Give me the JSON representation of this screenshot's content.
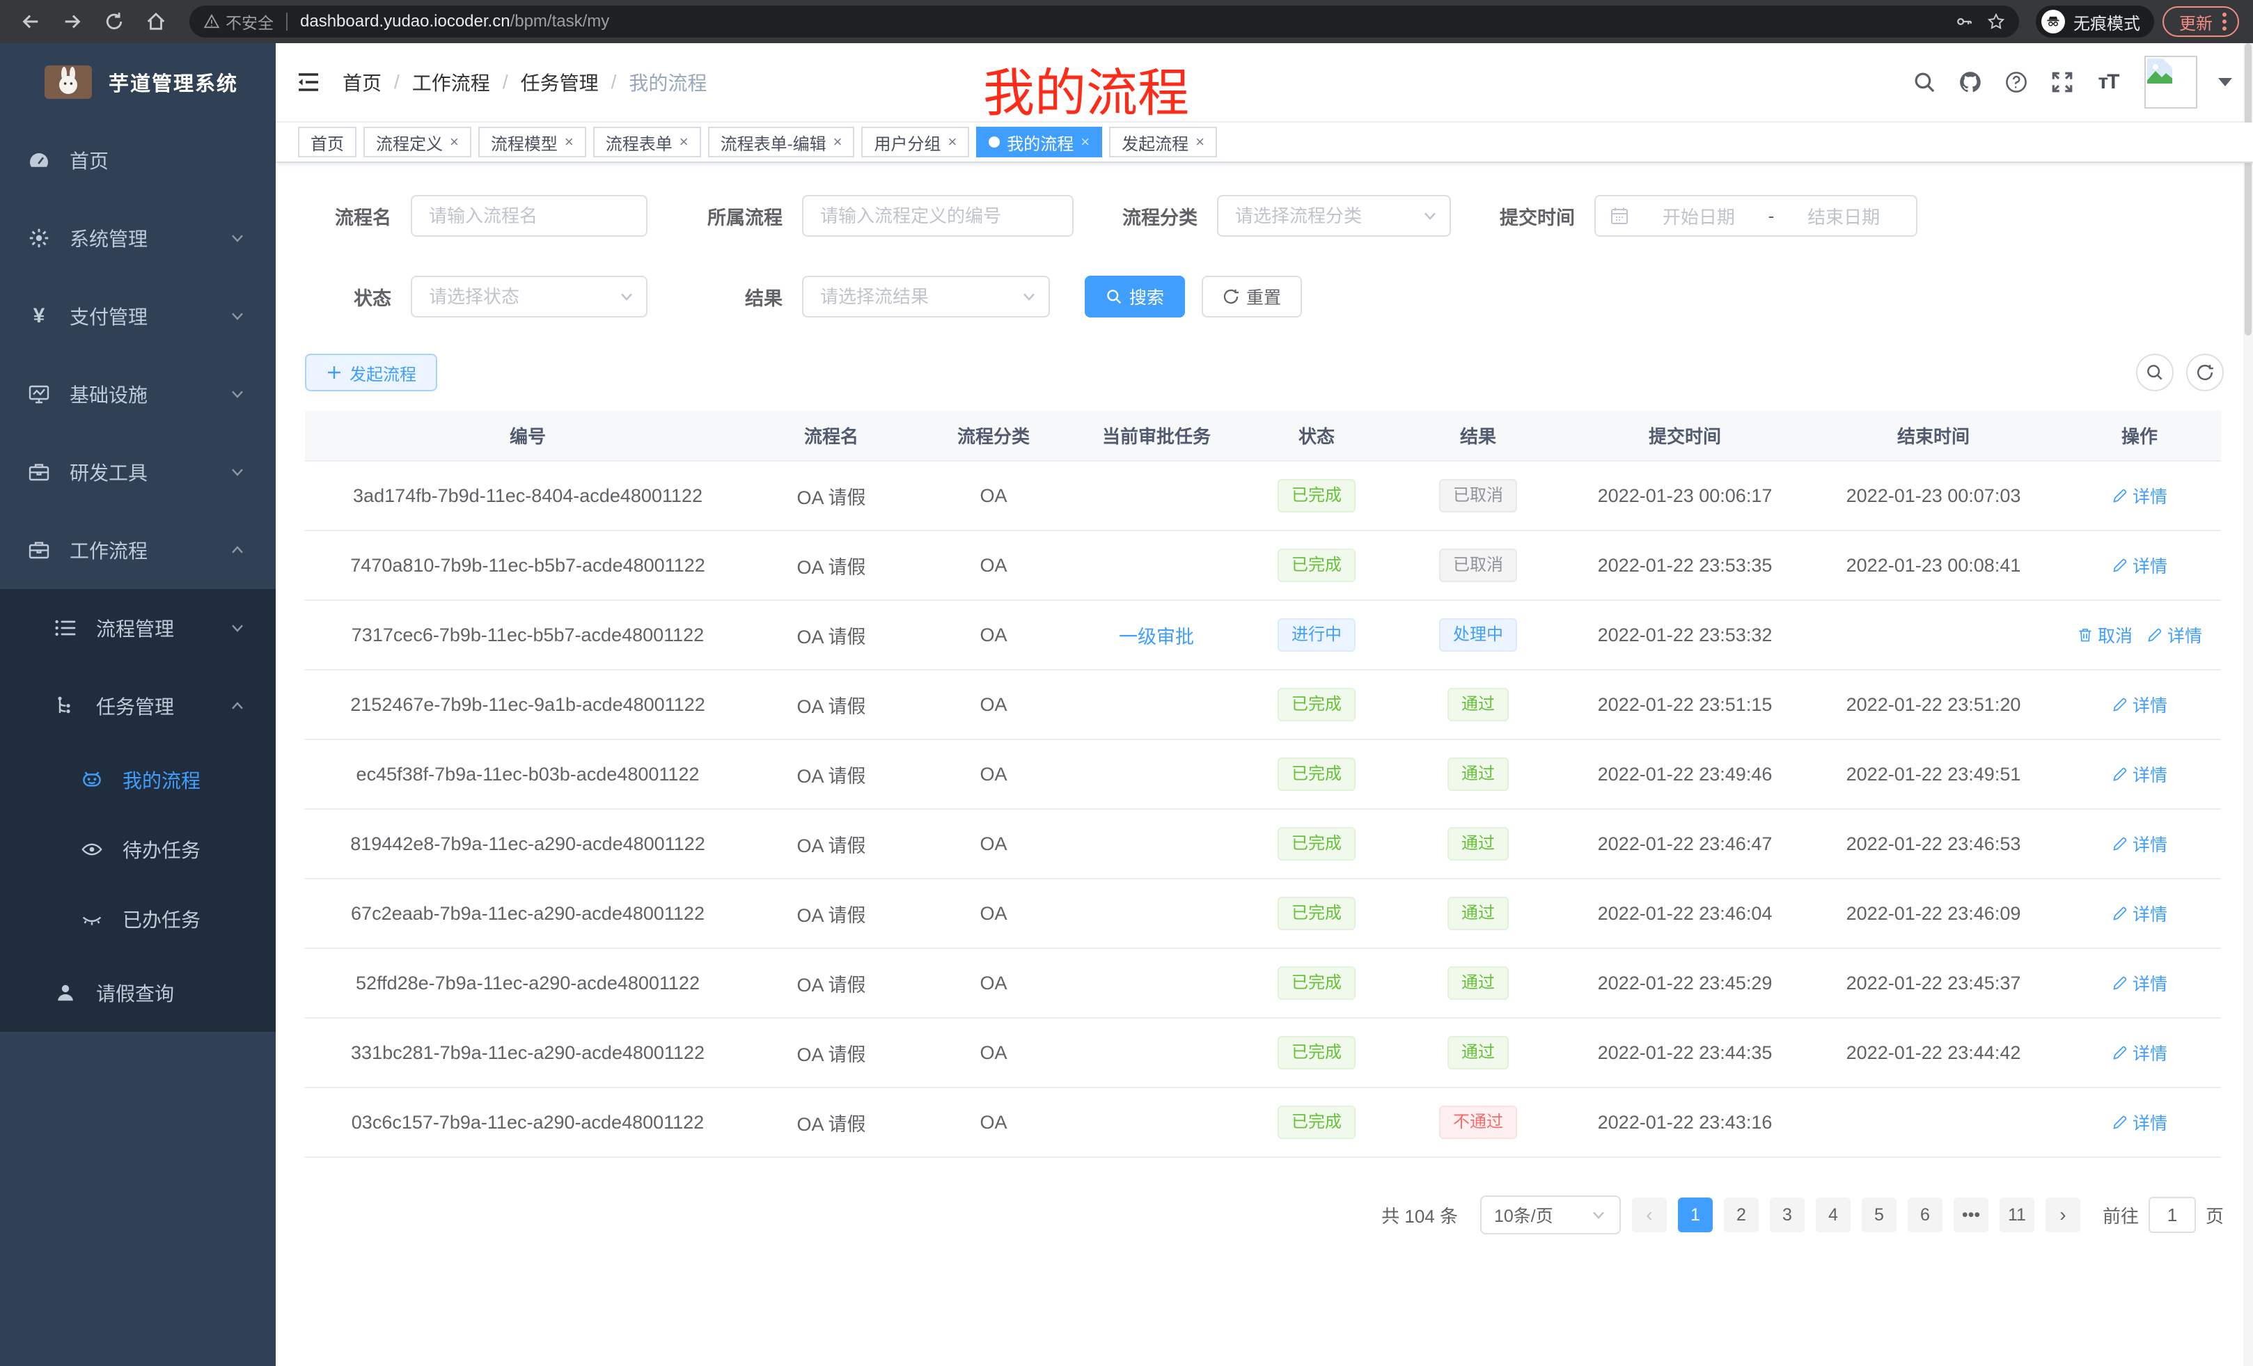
{
  "colors": {
    "accent": "#409eff",
    "success": "#67c23a",
    "danger": "#f56c6c",
    "info": "#909399",
    "sidebar_bg": "#304156",
    "submenu_bg": "#1f2d3d",
    "annotation_red": "#fd2b18",
    "chrome_update": "#f28b82"
  },
  "browser": {
    "security_label": "不安全",
    "url_domain": "dashboard.yudao.iocoder.cn",
    "url_path": "/bpm/task/my",
    "incognito_label": "无痕模式",
    "update_label": "更新"
  },
  "sidebar": {
    "app_title": "芋道管理系统",
    "menu": [
      {
        "key": "home",
        "label": "首页",
        "icon": "dashboard-icon",
        "level": 1,
        "chevron": "",
        "sub": false,
        "active": false
      },
      {
        "key": "system-management",
        "label": "系统管理",
        "icon": "gear-icon",
        "level": 1,
        "chevron": "down",
        "sub": false,
        "active": false
      },
      {
        "key": "payment-management",
        "label": "支付管理",
        "icon": "yen-icon",
        "level": 1,
        "chevron": "down",
        "sub": false,
        "active": false
      },
      {
        "key": "infrastructure",
        "label": "基础设施",
        "icon": "monitor-icon",
        "level": 1,
        "chevron": "down",
        "sub": false,
        "active": false
      },
      {
        "key": "dev-tools",
        "label": "研发工具",
        "icon": "toolbox-icon",
        "level": 1,
        "chevron": "down",
        "sub": false,
        "active": false
      },
      {
        "key": "workflow",
        "label": "工作流程",
        "icon": "briefcase-icon",
        "level": 1,
        "chevron": "up",
        "sub": false,
        "active": false
      },
      {
        "key": "process-management",
        "label": "流程管理",
        "icon": "list-icon",
        "level": 2,
        "chevron": "down",
        "sub": true,
        "active": false
      },
      {
        "key": "task-management",
        "label": "任务管理",
        "icon": "flow-icon",
        "level": 2,
        "chevron": "up",
        "sub": true,
        "active": false
      },
      {
        "key": "my-process",
        "label": "我的流程",
        "icon": "robot-icon",
        "level": 3,
        "chevron": "",
        "sub": true,
        "active": true
      },
      {
        "key": "todo-tasks",
        "label": "待办任务",
        "icon": "eye-icon",
        "level": 3,
        "chevron": "",
        "sub": true,
        "active": false
      },
      {
        "key": "done-tasks",
        "label": "已办任务",
        "icon": "eye-closed-icon",
        "level": 3,
        "chevron": "",
        "sub": true,
        "active": false
      },
      {
        "key": "leave-query",
        "label": "请假查询",
        "icon": "user-icon",
        "level": 2,
        "chevron": "",
        "sub": true,
        "active": false
      }
    ]
  },
  "header": {
    "breadcrumb": [
      "首页",
      "工作流程",
      "任务管理",
      "我的流程"
    ],
    "annotation": "我的流程"
  },
  "tabs": [
    {
      "key": "home",
      "label": "首页",
      "closable": false,
      "active": false
    },
    {
      "key": "process-definition",
      "label": "流程定义",
      "closable": true,
      "active": false
    },
    {
      "key": "process-model",
      "label": "流程模型",
      "closable": true,
      "active": false
    },
    {
      "key": "process-form",
      "label": "流程表单",
      "closable": true,
      "active": false
    },
    {
      "key": "process-form-edit",
      "label": "流程表单-编辑",
      "closable": true,
      "active": false
    },
    {
      "key": "user-group",
      "label": "用户分组",
      "closable": true,
      "active": false
    },
    {
      "key": "my-process",
      "label": "我的流程",
      "closable": true,
      "active": true
    },
    {
      "key": "start-process",
      "label": "发起流程",
      "closable": true,
      "active": false
    }
  ],
  "filters": {
    "process_name": {
      "label": "流程名",
      "placeholder": "请输入流程名"
    },
    "process_def": {
      "label": "所属流程",
      "placeholder": "请输入流程定义的编号"
    },
    "category": {
      "label": "流程分类",
      "placeholder": "请选择流程分类"
    },
    "submit_time": {
      "label": "提交时间",
      "start_placeholder": "开始日期",
      "separator": "-",
      "end_placeholder": "结束日期"
    },
    "status": {
      "label": "状态",
      "placeholder": "请选择状态"
    },
    "result": {
      "label": "结果",
      "placeholder": "请选择流结果"
    },
    "search_label": "搜索",
    "reset_label": "重置"
  },
  "toolbar": {
    "create_label": "发起流程"
  },
  "table": {
    "columns": [
      "编号",
      "流程名",
      "流程分类",
      "当前审批任务",
      "状态",
      "结果",
      "提交时间",
      "结束时间",
      "操作"
    ],
    "rows": [
      {
        "id": "3ad174fb-7b9d-11ec-8404-acde48001122",
        "name": "OA 请假",
        "category": "OA",
        "task": "",
        "status": "已完成",
        "status_type": "success",
        "result": "已取消",
        "result_type": "info",
        "submit_time": "2022-01-23 00:06:17",
        "end_time": "2022-01-23 00:07:03",
        "actions": [
          "详情"
        ]
      },
      {
        "id": "7470a810-7b9b-11ec-b5b7-acde48001122",
        "name": "OA 请假",
        "category": "OA",
        "task": "",
        "status": "已完成",
        "status_type": "success",
        "result": "已取消",
        "result_type": "info",
        "submit_time": "2022-01-22 23:53:35",
        "end_time": "2022-01-23 00:08:41",
        "actions": [
          "详情"
        ]
      },
      {
        "id": "7317cec6-7b9b-11ec-b5b7-acde48001122",
        "name": "OA 请假",
        "category": "OA",
        "task": "一级审批",
        "status": "进行中",
        "status_type": "primary",
        "result": "处理中",
        "result_type": "primary",
        "submit_time": "2022-01-22 23:53:32",
        "end_time": "",
        "actions": [
          "取消",
          "详情"
        ]
      },
      {
        "id": "2152467e-7b9b-11ec-9a1b-acde48001122",
        "name": "OA 请假",
        "category": "OA",
        "task": "",
        "status": "已完成",
        "status_type": "success",
        "result": "通过",
        "result_type": "success",
        "submit_time": "2022-01-22 23:51:15",
        "end_time": "2022-01-22 23:51:20",
        "actions": [
          "详情"
        ]
      },
      {
        "id": "ec45f38f-7b9a-11ec-b03b-acde48001122",
        "name": "OA 请假",
        "category": "OA",
        "task": "",
        "status": "已完成",
        "status_type": "success",
        "result": "通过",
        "result_type": "success",
        "submit_time": "2022-01-22 23:49:46",
        "end_time": "2022-01-22 23:49:51",
        "actions": [
          "详情"
        ]
      },
      {
        "id": "819442e8-7b9a-11ec-a290-acde48001122",
        "name": "OA 请假",
        "category": "OA",
        "task": "",
        "status": "已完成",
        "status_type": "success",
        "result": "通过",
        "result_type": "success",
        "submit_time": "2022-01-22 23:46:47",
        "end_time": "2022-01-22 23:46:53",
        "actions": [
          "详情"
        ]
      },
      {
        "id": "67c2eaab-7b9a-11ec-a290-acde48001122",
        "name": "OA 请假",
        "category": "OA",
        "task": "",
        "status": "已完成",
        "status_type": "success",
        "result": "通过",
        "result_type": "success",
        "submit_time": "2022-01-22 23:46:04",
        "end_time": "2022-01-22 23:46:09",
        "actions": [
          "详情"
        ]
      },
      {
        "id": "52ffd28e-7b9a-11ec-a290-acde48001122",
        "name": "OA 请假",
        "category": "OA",
        "task": "",
        "status": "已完成",
        "status_type": "success",
        "result": "通过",
        "result_type": "success",
        "submit_time": "2022-01-22 23:45:29",
        "end_time": "2022-01-22 23:45:37",
        "actions": [
          "详情"
        ]
      },
      {
        "id": "331bc281-7b9a-11ec-a290-acde48001122",
        "name": "OA 请假",
        "category": "OA",
        "task": "",
        "status": "已完成",
        "status_type": "success",
        "result": "通过",
        "result_type": "success",
        "submit_time": "2022-01-22 23:44:35",
        "end_time": "2022-01-22 23:44:42",
        "actions": [
          "详情"
        ]
      },
      {
        "id": "03c6c157-7b9a-11ec-a290-acde48001122",
        "name": "OA 请假",
        "category": "OA",
        "task": "",
        "status": "已完成",
        "status_type": "success",
        "result": "不通过",
        "result_type": "danger",
        "submit_time": "2022-01-22 23:43:16",
        "end_time": "",
        "actions": [
          "详情"
        ]
      }
    ]
  },
  "pagination": {
    "total_label": "共 104 条",
    "page_size_label": "10条/页",
    "pages": [
      "1",
      "2",
      "3",
      "4",
      "5",
      "6",
      "•••",
      "11"
    ],
    "active_page": "1",
    "prev_label": "‹",
    "next_label": "›",
    "goto_label": "前往",
    "goto_value": "1",
    "goto_suffix_label": "页"
  }
}
